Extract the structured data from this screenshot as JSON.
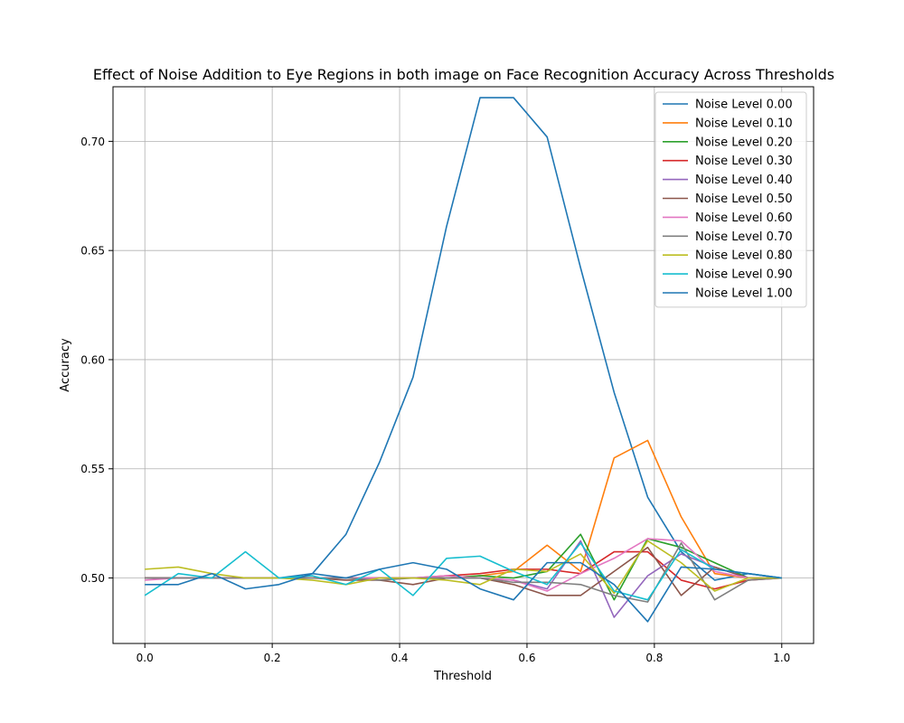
{
  "chart_data": {
    "type": "line",
    "title": "Effect of Noise Addition to Eye Regions in both image on Face Recognition Accuracy Across Thresholds",
    "xlabel": "Threshold",
    "ylabel": "Accuracy",
    "xlim": [
      -0.05,
      1.05
    ],
    "ylim": [
      0.47,
      0.725
    ],
    "xticks": [
      0.0,
      0.2,
      0.4,
      0.6,
      0.8,
      1.0
    ],
    "xtick_labels": [
      "0.0",
      "0.2",
      "0.4",
      "0.6",
      "0.8",
      "1.0"
    ],
    "yticks": [
      0.5,
      0.55,
      0.6,
      0.65,
      0.7
    ],
    "ytick_labels": [
      "0.50",
      "0.55",
      "0.60",
      "0.65",
      "0.70"
    ],
    "grid": true,
    "legend_position": "upper right",
    "x": [
      0.0,
      0.0526,
      0.1053,
      0.1579,
      0.2105,
      0.2632,
      0.3158,
      0.3684,
      0.4211,
      0.4737,
      0.5263,
      0.5789,
      0.6316,
      0.6842,
      0.7368,
      0.7895,
      0.8421,
      0.8947,
      0.9474,
      1.0
    ],
    "series": [
      {
        "name": "Noise Level 0.00",
        "color": "#1f77b4",
        "values": [
          0.5,
          0.5,
          0.5,
          0.5,
          0.5,
          0.502,
          0.52,
          0.553,
          0.592,
          0.661,
          0.72,
          0.72,
          0.702,
          0.642,
          0.585,
          0.537,
          0.512,
          0.499,
          0.502,
          0.5
        ]
      },
      {
        "name": "Noise Level 0.10",
        "color": "#ff7f0e",
        "values": [
          0.5,
          0.5,
          0.5,
          0.5,
          0.5,
          0.5,
          0.5,
          0.5,
          0.5,
          0.5,
          0.501,
          0.503,
          0.515,
          0.503,
          0.555,
          0.563,
          0.528,
          0.502,
          0.5,
          0.5
        ]
      },
      {
        "name": "Noise Level 0.20",
        "color": "#2ca02c",
        "values": [
          0.5,
          0.5,
          0.5,
          0.5,
          0.5,
          0.5,
          0.5,
          0.5,
          0.5,
          0.5,
          0.501,
          0.5,
          0.503,
          0.52,
          0.49,
          0.518,
          0.514,
          0.507,
          0.5,
          0.5
        ]
      },
      {
        "name": "Noise Level 0.30",
        "color": "#d62728",
        "values": [
          0.5,
          0.5,
          0.5,
          0.5,
          0.5,
          0.5,
          0.5,
          0.5,
          0.5,
          0.501,
          0.502,
          0.504,
          0.504,
          0.502,
          0.512,
          0.512,
          0.499,
          0.495,
          0.499,
          0.5
        ]
      },
      {
        "name": "Noise Level 0.40",
        "color": "#9467bd",
        "values": [
          0.5,
          0.5,
          0.5,
          0.5,
          0.5,
          0.5,
          0.5,
          0.5,
          0.5,
          0.5,
          0.5,
          0.499,
          0.495,
          0.517,
          0.482,
          0.501,
          0.511,
          0.505,
          0.5,
          0.5
        ]
      },
      {
        "name": "Noise Level 0.50",
        "color": "#8c564b",
        "values": [
          0.5,
          0.5,
          0.5,
          0.5,
          0.5,
          0.5,
          0.499,
          0.499,
          0.497,
          0.5,
          0.5,
          0.497,
          0.492,
          0.492,
          0.503,
          0.514,
          0.492,
          0.505,
          0.5,
          0.5
        ]
      },
      {
        "name": "Noise Level 0.60",
        "color": "#e377c2",
        "values": [
          0.499,
          0.5,
          0.5,
          0.5,
          0.5,
          0.5,
          0.5,
          0.5,
          0.5,
          0.501,
          0.5,
          0.499,
          0.494,
          0.502,
          0.509,
          0.518,
          0.517,
          0.503,
          0.5,
          0.5
        ]
      },
      {
        "name": "Noise Level 0.70",
        "color": "#7f7f7f",
        "values": [
          0.5,
          0.5,
          0.5,
          0.5,
          0.5,
          0.5,
          0.5,
          0.499,
          0.5,
          0.5,
          0.5,
          0.498,
          0.498,
          0.497,
          0.492,
          0.489,
          0.516,
          0.49,
          0.499,
          0.5
        ]
      },
      {
        "name": "Noise Level 0.80",
        "color": "#bcbd22",
        "values": [
          0.504,
          0.505,
          0.502,
          0.5,
          0.5,
          0.499,
          0.497,
          0.5,
          0.5,
          0.499,
          0.497,
          0.504,
          0.503,
          0.511,
          0.493,
          0.517,
          0.507,
          0.494,
          0.5,
          0.5
        ]
      },
      {
        "name": "Noise Level 0.90",
        "color": "#17becf",
        "values": [
          0.492,
          0.502,
          0.5,
          0.512,
          0.5,
          0.501,
          0.497,
          0.504,
          0.492,
          0.509,
          0.51,
          0.503,
          0.497,
          0.516,
          0.494,
          0.49,
          0.513,
          0.504,
          0.502,
          0.5
        ]
      },
      {
        "name": "Noise Level 1.00",
        "color": "#1f77b4",
        "values": [
          0.497,
          0.497,
          0.502,
          0.495,
          0.497,
          0.502,
          0.5,
          0.504,
          0.507,
          0.504,
          0.495,
          0.49,
          0.507,
          0.507,
          0.497,
          0.48,
          0.505,
          0.504,
          0.502,
          0.5
        ]
      }
    ]
  }
}
